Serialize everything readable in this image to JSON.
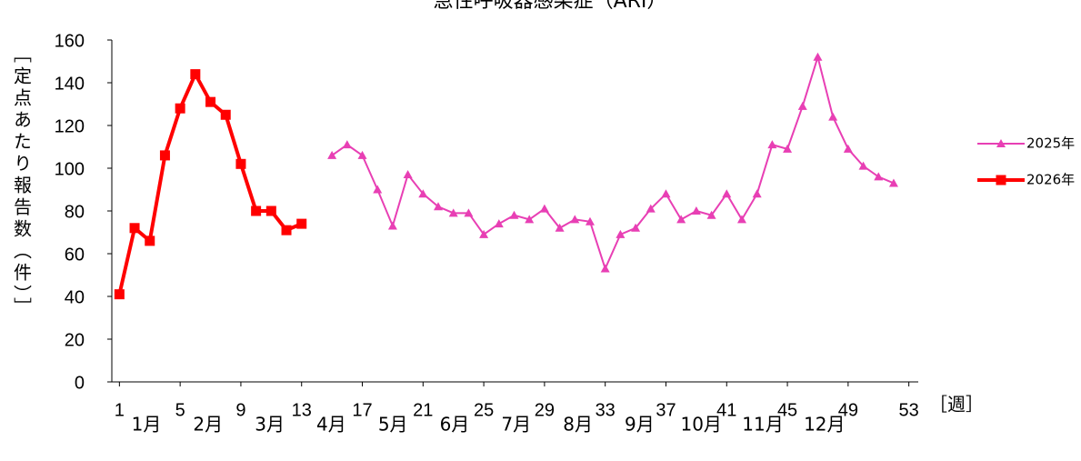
{
  "chart_data": {
    "type": "line",
    "title": "急性呼吸器感染症（ARI）",
    "y_label": "［定点あたり報告数（件）］",
    "x_label": "［週］",
    "month_labels": [
      "1月",
      "2月",
      "3月",
      "4月",
      "5月",
      "6月",
      "7月",
      "8月",
      "9月",
      "10月",
      "11月",
      "12月"
    ],
    "xlim": [
      0.5,
      53.5
    ],
    "xticks": [
      1,
      5,
      9,
      13,
      17,
      21,
      25,
      29,
      33,
      37,
      41,
      45,
      49,
      53
    ],
    "ylim": [
      0,
      160
    ],
    "yticks": [
      0,
      20,
      40,
      60,
      80,
      100,
      120,
      140,
      160
    ],
    "grid": false,
    "legend": "right",
    "series": [
      {
        "name": "2025年",
        "color": "#e83fb4",
        "marker": "triangle",
        "x": [
          15,
          16,
          17,
          18,
          19,
          20,
          21,
          22,
          23,
          24,
          25,
          26,
          27,
          28,
          29,
          30,
          31,
          32,
          33,
          34,
          35,
          36,
          37,
          38,
          39,
          40,
          41,
          42,
          43,
          44,
          45,
          46,
          47,
          48,
          49,
          50,
          51,
          52
        ],
        "values": [
          106,
          111,
          106,
          90,
          73,
          97,
          88,
          82,
          79,
          79,
          69,
          74,
          78,
          76,
          81,
          72,
          76,
          75,
          53,
          69,
          72,
          81,
          88,
          76,
          80,
          78,
          88,
          76,
          88,
          111,
          109,
          129,
          152,
          124,
          109,
          101,
          96,
          93
        ]
      },
      {
        "name": "2026年",
        "color": "#ff0000",
        "marker": "square",
        "x": [
          1,
          2,
          3,
          4,
          5,
          6,
          7,
          8,
          9,
          10,
          11,
          12,
          13
        ],
        "values": [
          41,
          72,
          66,
          106,
          128,
          144,
          131,
          125,
          102,
          80,
          80,
          71,
          74
        ]
      }
    ]
  }
}
